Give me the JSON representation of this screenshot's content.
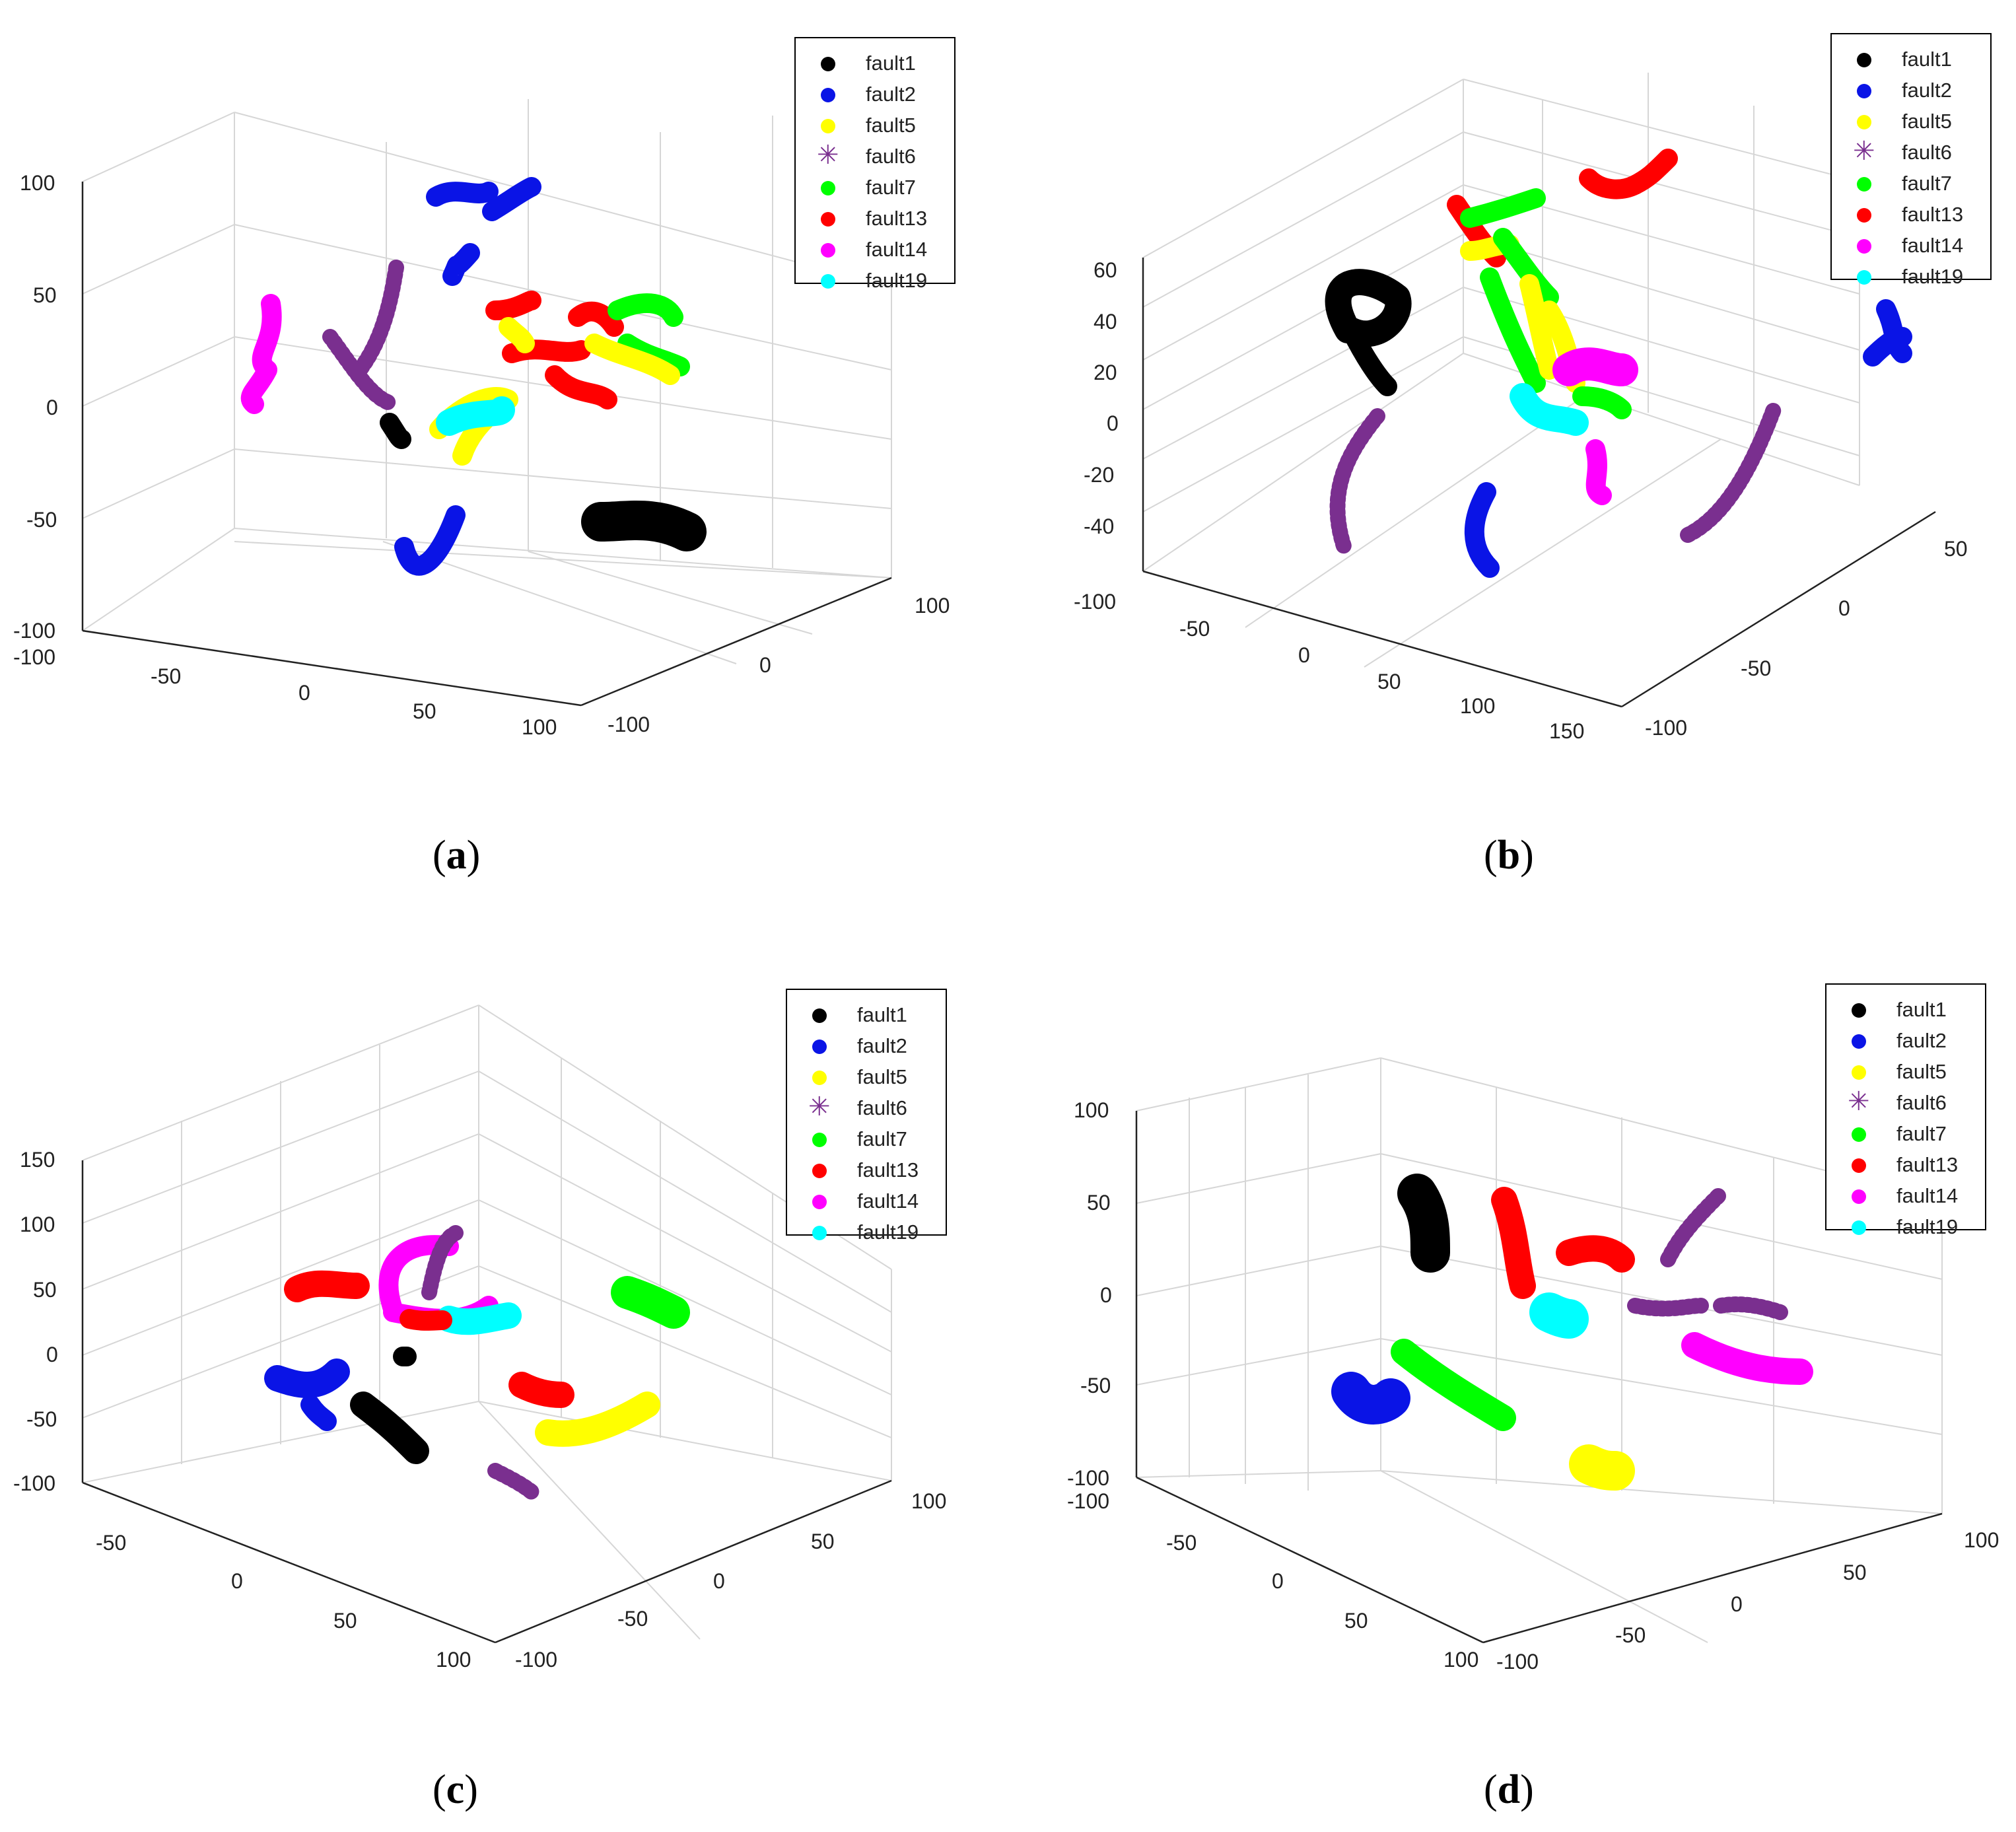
{
  "series_names": [
    "fault1",
    "fault2",
    "fault5",
    "fault6",
    "fault7",
    "fault13",
    "fault14",
    "fault19"
  ],
  "series_colors": [
    "#000000",
    "#0a14e6",
    "#ffff00",
    "#7a2f8f",
    "#00ff00",
    "#ff0000",
    "#ff00ff",
    "#00ffff"
  ],
  "series_markers": [
    "dot",
    "dot",
    "dot",
    "star",
    "dot",
    "dot",
    "dot",
    "dot"
  ],
  "chart_data": [
    {
      "type": "scatter",
      "caption": "a",
      "legend": "top-right",
      "grid": true,
      "xlim": [
        -100,
        100
      ],
      "ylim": [
        -100,
        100
      ],
      "zlim": [
        -100,
        100
      ],
      "xticks": [
        "-100",
        "-50",
        "0",
        "50",
        "100"
      ],
      "yticks": [
        "-100",
        "0",
        "100"
      ],
      "zticks": [
        "-100",
        "-50",
        "0",
        "50",
        "100"
      ],
      "series": [
        {
          "name": "fault1",
          "values": [
            [
              70,
              -90,
              -55
            ],
            [
              -40,
              -60,
              -10
            ]
          ]
        },
        {
          "name": "fault2",
          "values": [
            [
              -30,
              60,
              95
            ],
            [
              -40,
              -90,
              -60
            ]
          ]
        },
        {
          "name": "fault5",
          "values": [
            [
              -10,
              0,
              -5
            ],
            [
              40,
              40,
              30
            ],
            [
              60,
              30,
              20
            ]
          ]
        },
        {
          "name": "fault6",
          "values": [
            [
              -60,
              10,
              20
            ],
            [
              -20,
              10,
              -10
            ]
          ]
        },
        {
          "name": "fault7",
          "values": [
            [
              70,
              30,
              35
            ],
            [
              30,
              30,
              40
            ]
          ]
        },
        {
          "name": "fault13",
          "values": [
            [
              40,
              20,
              30
            ],
            [
              60,
              30,
              30
            ],
            [
              30,
              40,
              40
            ]
          ]
        },
        {
          "name": "fault14",
          "values": [
            [
              -90,
              -40,
              20
            ]
          ]
        },
        {
          "name": "fault19",
          "values": [
            [
              -10,
              -10,
              -5
            ]
          ]
        }
      ]
    },
    {
      "type": "scatter",
      "caption": "b",
      "legend": "top-right",
      "grid": true,
      "xlim": [
        -100,
        150
      ],
      "ylim": [
        -100,
        50
      ],
      "zlim": [
        -40,
        60
      ],
      "xticks": [
        "-100",
        "-50",
        "0",
        "50",
        "100",
        "150"
      ],
      "yticks": [
        "-100",
        "-50",
        "0",
        "50"
      ],
      "zticks": [
        "-40",
        "-20",
        "0",
        "20",
        "40",
        "60"
      ],
      "series": [
        {
          "name": "fault1",
          "values": [
            [
              -60,
              -20,
              40
            ]
          ]
        },
        {
          "name": "fault2",
          "values": [
            [
              100,
              30,
              40
            ],
            [
              40,
              -60,
              -40
            ]
          ]
        },
        {
          "name": "fault5",
          "values": [
            [
              20,
              0,
              40
            ],
            [
              30,
              0,
              10
            ]
          ]
        },
        {
          "name": "fault6",
          "values": [
            [
              -40,
              -50,
              -20
            ],
            [
              120,
              -50,
              -10
            ]
          ]
        },
        {
          "name": "fault7",
          "values": [
            [
              20,
              10,
              30
            ]
          ]
        },
        {
          "name": "fault13",
          "values": [
            [
              10,
              30,
              55
            ],
            [
              50,
              40,
              55
            ]
          ]
        },
        {
          "name": "fault14",
          "values": [
            [
              40,
              0,
              10
            ]
          ]
        },
        {
          "name": "fault19",
          "values": [
            [
              30,
              0,
              0
            ]
          ]
        }
      ]
    },
    {
      "type": "scatter",
      "caption": "c",
      "legend": "top-right",
      "grid": true,
      "xlim": [
        -100,
        100
      ],
      "ylim": [
        -100,
        100
      ],
      "zlim": [
        -100,
        150
      ],
      "xticks": [
        "-100",
        "-50",
        "0",
        "50",
        "100"
      ],
      "yticks": [
        "-100",
        "-50",
        "0",
        "50",
        "100"
      ],
      "zticks": [
        "-100",
        "-50",
        "0",
        "50",
        "100",
        "150"
      ],
      "series": [
        {
          "name": "fault1",
          "values": [
            [
              -20,
              -60,
              -50
            ]
          ]
        },
        {
          "name": "fault2",
          "values": [
            [
              -50,
              -60,
              -30
            ]
          ]
        },
        {
          "name": "fault5",
          "values": [
            [
              60,
              10,
              -50
            ]
          ]
        },
        {
          "name": "fault6",
          "values": [
            [
              20,
              30,
              70
            ],
            [
              70,
              -30,
              -80
            ]
          ]
        },
        {
          "name": "fault7",
          "values": [
            [
              60,
              80,
              40
            ]
          ]
        },
        {
          "name": "fault13",
          "values": [
            [
              -80,
              20,
              50
            ],
            [
              40,
              -10,
              -20
            ]
          ]
        },
        {
          "name": "fault14",
          "values": [
            [
              0,
              30,
              60
            ]
          ]
        },
        {
          "name": "fault19",
          "values": [
            [
              20,
              20,
              20
            ]
          ]
        }
      ]
    },
    {
      "type": "scatter",
      "caption": "d",
      "legend": "top-right",
      "grid": true,
      "xlim": [
        -100,
        100
      ],
      "ylim": [
        -100,
        100
      ],
      "zlim": [
        -100,
        100
      ],
      "xticks": [
        "-100",
        "-50",
        "0",
        "50",
        "100"
      ],
      "yticks": [
        "-100",
        "-50",
        "0",
        "50",
        "100"
      ],
      "zticks": [
        "-100",
        "-50",
        "0",
        "50",
        "100"
      ],
      "series": [
        {
          "name": "fault1",
          "values": [
            [
              -70,
              -30,
              60
            ]
          ]
        },
        {
          "name": "fault2",
          "values": [
            [
              -60,
              -70,
              -50
            ]
          ]
        },
        {
          "name": "fault5",
          "values": [
            [
              40,
              -50,
              -60
            ]
          ]
        },
        {
          "name": "fault6",
          "values": [
            [
              60,
              20,
              50
            ],
            [
              60,
              30,
              0
            ]
          ]
        },
        {
          "name": "fault7",
          "values": [
            [
              -20,
              -40,
              -40
            ]
          ]
        },
        {
          "name": "fault13",
          "values": [
            [
              0,
              0,
              50
            ],
            [
              30,
              10,
              40
            ]
          ]
        },
        {
          "name": "fault14",
          "values": [
            [
              80,
              20,
              -50
            ]
          ]
        },
        {
          "name": "fault19",
          "values": [
            [
              0,
              0,
              0
            ]
          ]
        }
      ]
    }
  ]
}
